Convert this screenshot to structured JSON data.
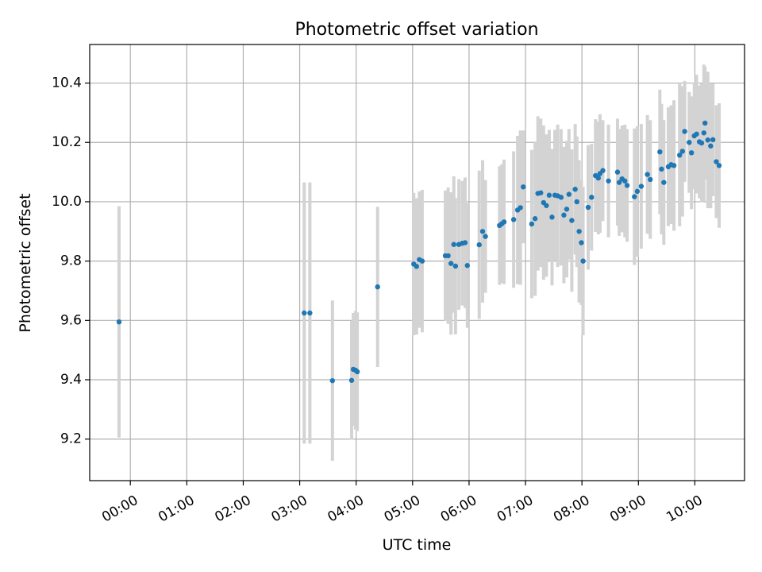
{
  "chart_data": {
    "type": "scatter",
    "title": "Photometric offset variation",
    "xlabel": "UTC time",
    "ylabel": "Photometric offset",
    "xlim_hours": [
      -0.72,
      10.88
    ],
    "ylim": [
      9.06,
      10.53
    ],
    "grid": true,
    "x_tick_labels": [
      "00:00",
      "01:00",
      "02:00",
      "03:00",
      "04:00",
      "05:00",
      "06:00",
      "07:00",
      "08:00",
      "09:00",
      "10:00"
    ],
    "x_tick_hours": [
      0,
      1,
      2,
      3,
      4,
      5,
      6,
      7,
      8,
      9,
      10
    ],
    "y_ticks": [
      9.2,
      9.4,
      9.6,
      9.8,
      10.0,
      10.2,
      10.4
    ],
    "y_tick_labels": [
      "9.2",
      "9.4",
      "9.6",
      "9.8",
      "10.0",
      "10.2",
      "10.4"
    ],
    "colors": {
      "point": "#1f77b4",
      "errorbar": "#d3d3d3",
      "grid": "#b0b0b0"
    },
    "series": [
      {
        "points": [
          [
            -0.2,
            9.595,
            0.39
          ],
          [
            3.08,
            9.625,
            0.44
          ],
          [
            3.18,
            9.625,
            0.44
          ],
          [
            3.58,
            9.397,
            0.27
          ],
          [
            3.92,
            9.398,
            0.2
          ],
          [
            3.95,
            9.435,
            0.19
          ],
          [
            3.99,
            9.432,
            0.2
          ],
          [
            4.02,
            9.427,
            0.2
          ],
          [
            4.38,
            9.713,
            0.27
          ],
          [
            5.02,
            9.79,
            0.24
          ],
          [
            5.07,
            9.782,
            0.23
          ],
          [
            5.12,
            9.805,
            0.23
          ],
          [
            5.17,
            9.8,
            0.24
          ],
          [
            5.58,
            9.818,
            0.22
          ],
          [
            5.63,
            9.818,
            0.23
          ],
          [
            5.68,
            9.792,
            0.24
          ],
          [
            5.73,
            9.856,
            0.23
          ],
          [
            5.76,
            9.783,
            0.23
          ],
          [
            5.82,
            9.856,
            0.22
          ],
          [
            5.88,
            9.86,
            0.21
          ],
          [
            5.93,
            9.862,
            0.22
          ],
          [
            5.97,
            9.785,
            0.21
          ],
          [
            6.18,
            9.855,
            0.25
          ],
          [
            6.24,
            9.9,
            0.24
          ],
          [
            6.29,
            9.883,
            0.19
          ],
          [
            6.54,
            9.92,
            0.2
          ],
          [
            6.58,
            9.926,
            0.2
          ],
          [
            6.62,
            9.932,
            0.21
          ],
          [
            6.79,
            9.94,
            0.23
          ],
          [
            6.86,
            9.972,
            0.25
          ],
          [
            6.91,
            9.98,
            0.26
          ],
          [
            6.96,
            10.05,
            0.19
          ],
          [
            7.11,
            9.925,
            0.25
          ],
          [
            7.17,
            9.943,
            0.26
          ],
          [
            7.22,
            10.028,
            0.26
          ],
          [
            7.27,
            10.03,
            0.25
          ],
          [
            7.32,
            9.997,
            0.26
          ],
          [
            7.37,
            9.987,
            0.24
          ],
          [
            7.42,
            10.022,
            0.22
          ],
          [
            7.47,
            9.948,
            0.23
          ],
          [
            7.52,
            10.022,
            0.22
          ],
          [
            7.57,
            10.02,
            0.24
          ],
          [
            7.63,
            10.015,
            0.23
          ],
          [
            7.68,
            9.955,
            0.23
          ],
          [
            7.73,
            9.975,
            0.23
          ],
          [
            7.77,
            10.025,
            0.22
          ],
          [
            7.82,
            9.937,
            0.24
          ],
          [
            7.88,
            10.042,
            0.22
          ],
          [
            7.91,
            10.0,
            0.22
          ],
          [
            7.95,
            9.9,
            0.24
          ],
          [
            7.99,
            9.862,
            0.21
          ],
          [
            8.02,
            9.8,
            0.25
          ],
          [
            8.11,
            9.981,
            0.21
          ],
          [
            8.17,
            10.015,
            0.18
          ],
          [
            8.24,
            10.088,
            0.19
          ],
          [
            8.29,
            10.08,
            0.19
          ],
          [
            8.32,
            10.095,
            0.2
          ],
          [
            8.37,
            10.105,
            0.17
          ],
          [
            8.47,
            10.07,
            0.19
          ],
          [
            8.63,
            10.1,
            0.18
          ],
          [
            8.66,
            10.065,
            0.18
          ],
          [
            8.71,
            10.077,
            0.18
          ],
          [
            8.76,
            10.07,
            0.19
          ],
          [
            8.8,
            10.055,
            0.19
          ],
          [
            8.93,
            10.017,
            0.23
          ],
          [
            8.98,
            10.035,
            0.22
          ],
          [
            9.05,
            10.052,
            0.21
          ],
          [
            9.16,
            10.092,
            0.2
          ],
          [
            9.21,
            10.075,
            0.2
          ],
          [
            9.38,
            10.168,
            0.21
          ],
          [
            9.41,
            10.11,
            0.22
          ],
          [
            9.45,
            10.065,
            0.21
          ],
          [
            9.53,
            10.118,
            0.2
          ],
          [
            9.58,
            10.125,
            0.2
          ],
          [
            9.63,
            10.122,
            0.22
          ],
          [
            9.73,
            10.157,
            0.24
          ],
          [
            9.78,
            10.17,
            0.22
          ],
          [
            9.82,
            10.237,
            0.17
          ],
          [
            9.9,
            10.2,
            0.17
          ],
          [
            9.94,
            10.165,
            0.19
          ],
          [
            9.99,
            10.222,
            0.18
          ],
          [
            10.03,
            10.228,
            0.2
          ],
          [
            10.08,
            10.202,
            0.19
          ],
          [
            10.12,
            10.198,
            0.2
          ],
          [
            10.16,
            10.232,
            0.23
          ],
          [
            10.18,
            10.265,
            0.19
          ],
          [
            10.23,
            10.208,
            0.23
          ],
          [
            10.28,
            10.188,
            0.21
          ],
          [
            10.32,
            10.209,
            0.19
          ],
          [
            10.38,
            10.135,
            0.19
          ],
          [
            10.43,
            10.122,
            0.21
          ]
        ]
      }
    ]
  }
}
